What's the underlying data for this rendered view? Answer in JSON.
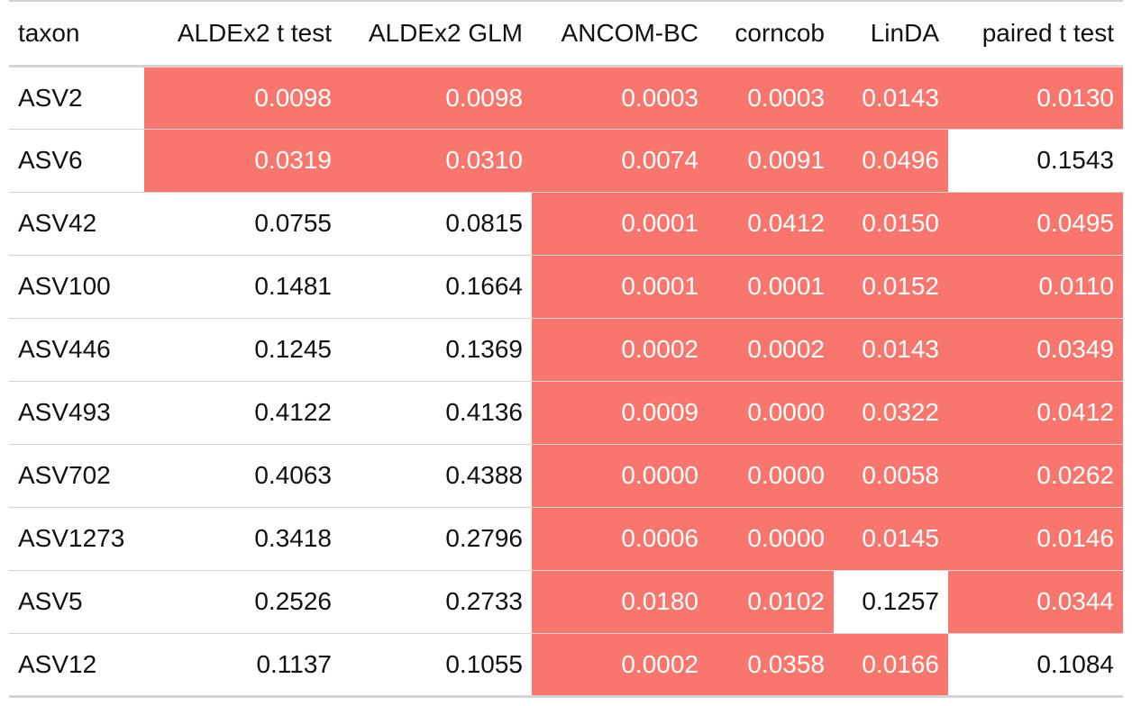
{
  "table": {
    "colors": {
      "significant_bg": "#f8766d",
      "significant_text": "#ffffff",
      "default_bg": "#ffffff",
      "rule": "#d3d3d3"
    },
    "columns": [
      "taxon",
      "ALDEx2 t test",
      "ALDEx2 GLM",
      "ANCOM-BC",
      "corncob",
      "LinDA",
      "paired t test"
    ],
    "rows": [
      {
        "taxon": "ASV2",
        "values": [
          "0.0098",
          "0.0098",
          "0.0003",
          "0.0003",
          "0.0143",
          "0.0130"
        ],
        "significant": [
          true,
          true,
          true,
          true,
          true,
          true
        ]
      },
      {
        "taxon": "ASV6",
        "values": [
          "0.0319",
          "0.0310",
          "0.0074",
          "0.0091",
          "0.0496",
          "0.1543"
        ],
        "significant": [
          true,
          true,
          true,
          true,
          true,
          false
        ]
      },
      {
        "taxon": "ASV42",
        "values": [
          "0.0755",
          "0.0815",
          "0.0001",
          "0.0412",
          "0.0150",
          "0.0495"
        ],
        "significant": [
          false,
          false,
          true,
          true,
          true,
          true
        ]
      },
      {
        "taxon": "ASV100",
        "values": [
          "0.1481",
          "0.1664",
          "0.0001",
          "0.0001",
          "0.0152",
          "0.0110"
        ],
        "significant": [
          false,
          false,
          true,
          true,
          true,
          true
        ]
      },
      {
        "taxon": "ASV446",
        "values": [
          "0.1245",
          "0.1369",
          "0.0002",
          "0.0002",
          "0.0143",
          "0.0349"
        ],
        "significant": [
          false,
          false,
          true,
          true,
          true,
          true
        ]
      },
      {
        "taxon": "ASV493",
        "values": [
          "0.4122",
          "0.4136",
          "0.0009",
          "0.0000",
          "0.0322",
          "0.0412"
        ],
        "significant": [
          false,
          false,
          true,
          true,
          true,
          true
        ]
      },
      {
        "taxon": "ASV702",
        "values": [
          "0.4063",
          "0.4388",
          "0.0000",
          "0.0000",
          "0.0058",
          "0.0262"
        ],
        "significant": [
          false,
          false,
          true,
          true,
          true,
          true
        ]
      },
      {
        "taxon": "ASV1273",
        "values": [
          "0.3418",
          "0.2796",
          "0.0006",
          "0.0000",
          "0.0145",
          "0.0146"
        ],
        "significant": [
          false,
          false,
          true,
          true,
          true,
          true
        ]
      },
      {
        "taxon": "ASV5",
        "values": [
          "0.2526",
          "0.2733",
          "0.0180",
          "0.0102",
          "0.1257",
          "0.0344"
        ],
        "significant": [
          false,
          false,
          true,
          true,
          false,
          true
        ]
      },
      {
        "taxon": "ASV12",
        "values": [
          "0.1137",
          "0.1055",
          "0.0002",
          "0.0358",
          "0.0166",
          "0.1084"
        ],
        "significant": [
          false,
          false,
          true,
          true,
          true,
          false
        ]
      }
    ]
  }
}
